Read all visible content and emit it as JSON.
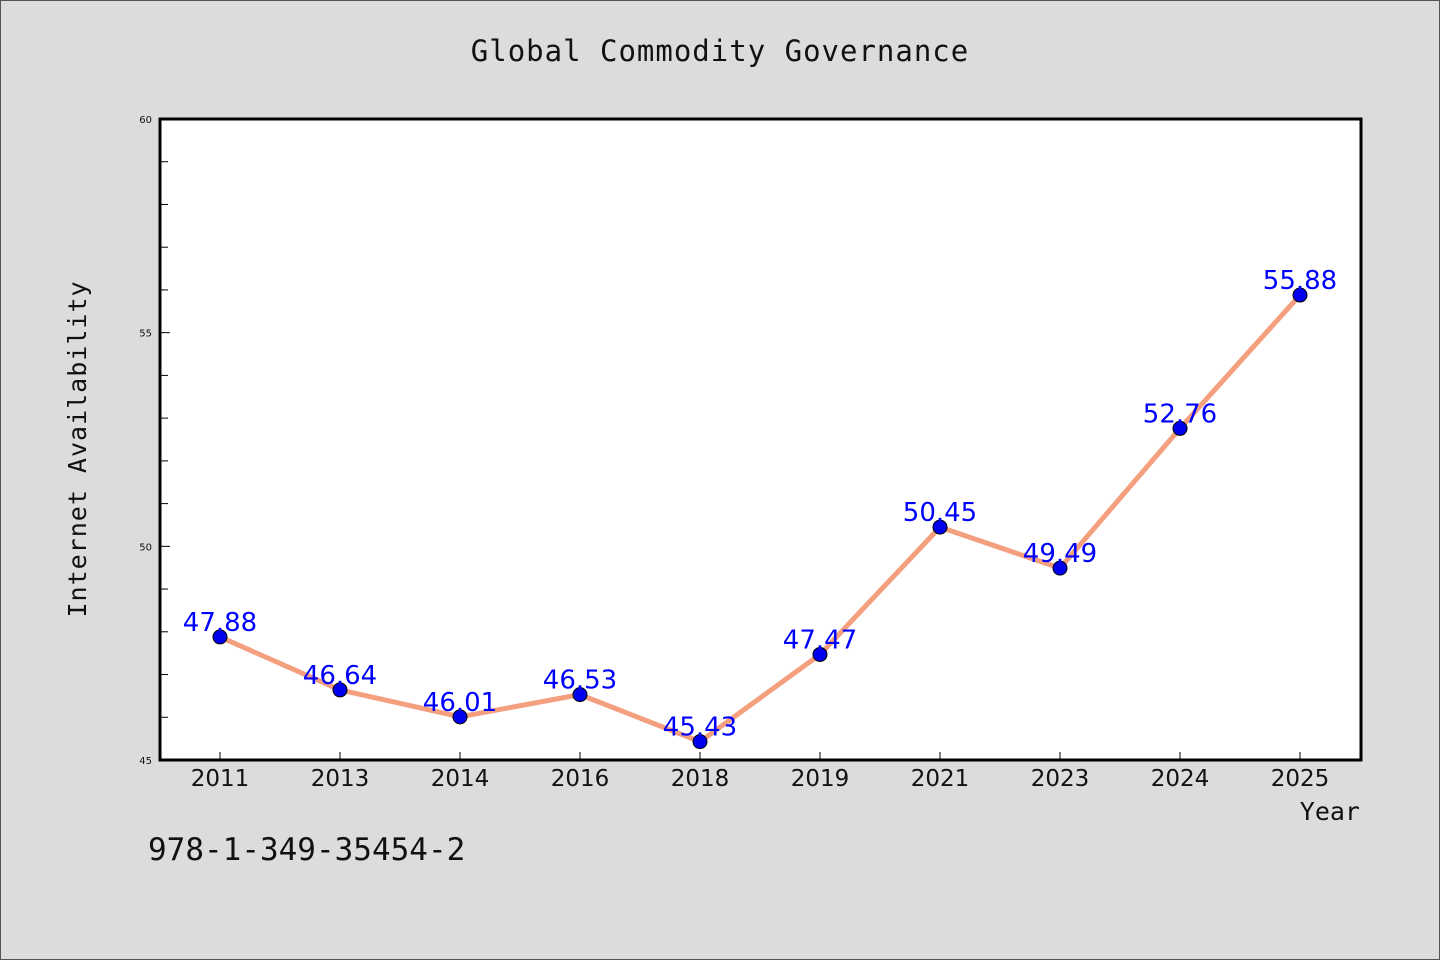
{
  "chart_data": {
    "type": "line",
    "title": "Global Commodity Governance",
    "xlabel": "Year",
    "ylabel": "Internet Availability",
    "categories": [
      "2011",
      "2013",
      "2014",
      "2016",
      "2018",
      "2019",
      "2021",
      "2023",
      "2024",
      "2025"
    ],
    "series": [
      {
        "values": [
          47.88,
          46.64,
          46.01,
          46.53,
          45.43,
          47.47,
          50.45,
          49.49,
          52.76,
          55.88
        ],
        "line_color": "#f4a07f",
        "marker_color": "#0000ee",
        "label_color": "#0000ff"
      }
    ],
    "data_labels": [
      "47.88",
      "46.64",
      "46.01",
      "46.53",
      "45.43",
      "47.47",
      "50.45",
      "49.49",
      "52.76",
      "55.88"
    ],
    "ylim": [
      45,
      60
    ],
    "y_ticks": [
      "45",
      "50",
      "55",
      "60"
    ],
    "grid": false,
    "legend": "none"
  },
  "annotation": {
    "isbn": "978-1-349-35454-2"
  }
}
